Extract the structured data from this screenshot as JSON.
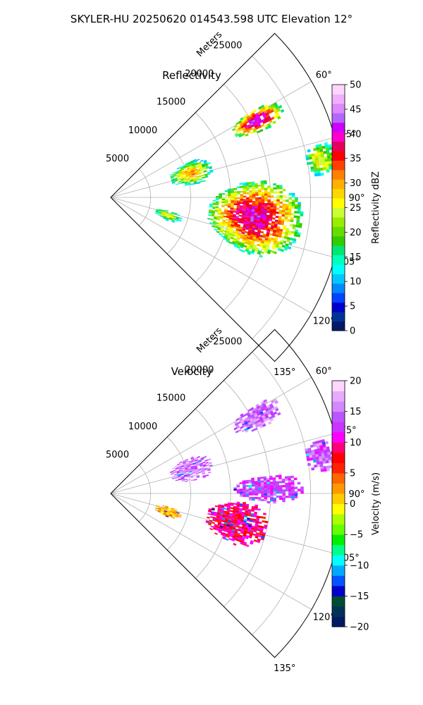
{
  "figure": {
    "suptitle": "SKYLER-HU  20250620  014543.598 UTC Elevation 12°"
  },
  "chart_data": [
    {
      "type": "heatmap",
      "projection": "polar-sector",
      "title": "Reflectivity",
      "range_label": "Meters",
      "range_max": 29000,
      "range_ticks": [
        "5000",
        "10000",
        "15000",
        "20000",
        "25000"
      ],
      "range_tick_values": [
        5000,
        10000,
        15000,
        20000,
        25000
      ],
      "azimuth_range_deg": [
        45,
        135
      ],
      "azimuth_ticks": [
        "60°",
        "75°",
        "90°",
        "105°",
        "120°",
        "135°"
      ],
      "azimuth_tick_values": [
        60,
        75,
        90,
        105,
        120,
        135
      ],
      "grid": true,
      "colorbar": {
        "label": "Reflectivity dBZ",
        "vmin": 0,
        "vmax": 50,
        "ticks": [
          "0",
          "5",
          "10",
          "15",
          "20",
          "25",
          "30",
          "35",
          "40",
          "45",
          "50"
        ],
        "tick_values": [
          0,
          5,
          10,
          15,
          20,
          25,
          30,
          35,
          40,
          45,
          50
        ],
        "colors": [
          "#001a66",
          "#003399",
          "#0000cc",
          "#0044ff",
          "#0088ff",
          "#00c8ff",
          "#00ffff",
          "#00ffbb",
          "#00e676",
          "#33cc00",
          "#66dd00",
          "#99ee00",
          "#ccff33",
          "#ffff00",
          "#ffd700",
          "#ffb000",
          "#ff8000",
          "#ff4000",
          "#ff0000",
          "#e6005c",
          "#ff00cc",
          "#cc00ff",
          "#b366ff",
          "#dd88ff",
          "#f0b0ff",
          "#ffd6ff"
        ]
      },
      "echoes": [
        {
          "az": [
            58,
            66
          ],
          "r": [
            17000,
            24000
          ],
          "peak": 42
        },
        {
          "az": [
            75,
            84
          ],
          "r": [
            24500,
            28500
          ],
          "peak": 27
        },
        {
          "az": [
            65,
            81
          ],
          "r": [
            7500,
            13000
          ],
          "peak": 30
        },
        {
          "az": [
            83,
            112
          ],
          "r": [
            12000,
            24000
          ],
          "peak": 40
        },
        {
          "az": [
            102,
            112
          ],
          "r": [
            5500,
            9000
          ],
          "peak": 26
        }
      ]
    },
    {
      "type": "heatmap",
      "projection": "polar-sector",
      "title": "Velocity",
      "range_label": "Meters",
      "range_max": 29000,
      "range_ticks": [
        "5000",
        "10000",
        "15000",
        "20000",
        "25000"
      ],
      "range_tick_values": [
        5000,
        10000,
        15000,
        20000,
        25000
      ],
      "azimuth_range_deg": [
        45,
        135
      ],
      "azimuth_ticks": [
        "60°",
        "75°",
        "90°",
        "105°",
        "120°",
        "135°"
      ],
      "azimuth_tick_values": [
        60,
        75,
        90,
        105,
        120,
        135
      ],
      "grid": true,
      "colorbar": {
        "label": "Velocity (m/s)",
        "vmin": -20,
        "vmax": 20,
        "ticks": [
          "−20",
          "−15",
          "−10",
          "−5",
          "0",
          "5",
          "10",
          "15",
          "20"
        ],
        "tick_values": [
          -20,
          -15,
          -10,
          -5,
          0,
          5,
          10,
          15,
          20
        ],
        "colors": [
          "#001a66",
          "#003355",
          "#004d33",
          "#0000cc",
          "#0055ff",
          "#00aaff",
          "#00ffff",
          "#00ff88",
          "#00ee00",
          "#66ff00",
          "#aaff00",
          "#ffff00",
          "#ffcc00",
          "#ff9900",
          "#ff6600",
          "#ff2200",
          "#ff0000",
          "#ff0077",
          "#ff00ff",
          "#cc33ff",
          "#bb55ff",
          "#d488ff",
          "#e8aaff",
          "#ffd6ff"
        ]
      },
      "echoes": [
        {
          "az": [
            58,
            66
          ],
          "r": [
            17000,
            24000
          ],
          "value": 15
        },
        {
          "az": [
            75,
            84
          ],
          "r": [
            24500,
            28500
          ],
          "value": 14
        },
        {
          "az": [
            65,
            81
          ],
          "r": [
            7500,
            13000
          ],
          "value": 15
        },
        {
          "az": [
            83,
            93
          ],
          "r": [
            15000,
            24000
          ],
          "value": 13
        },
        {
          "az": [
            93,
            112
          ],
          "r": [
            12000,
            20000
          ],
          "value": 9
        },
        {
          "az": [
            102,
            112
          ],
          "r": [
            5500,
            9000
          ],
          "value": 2
        }
      ]
    }
  ]
}
